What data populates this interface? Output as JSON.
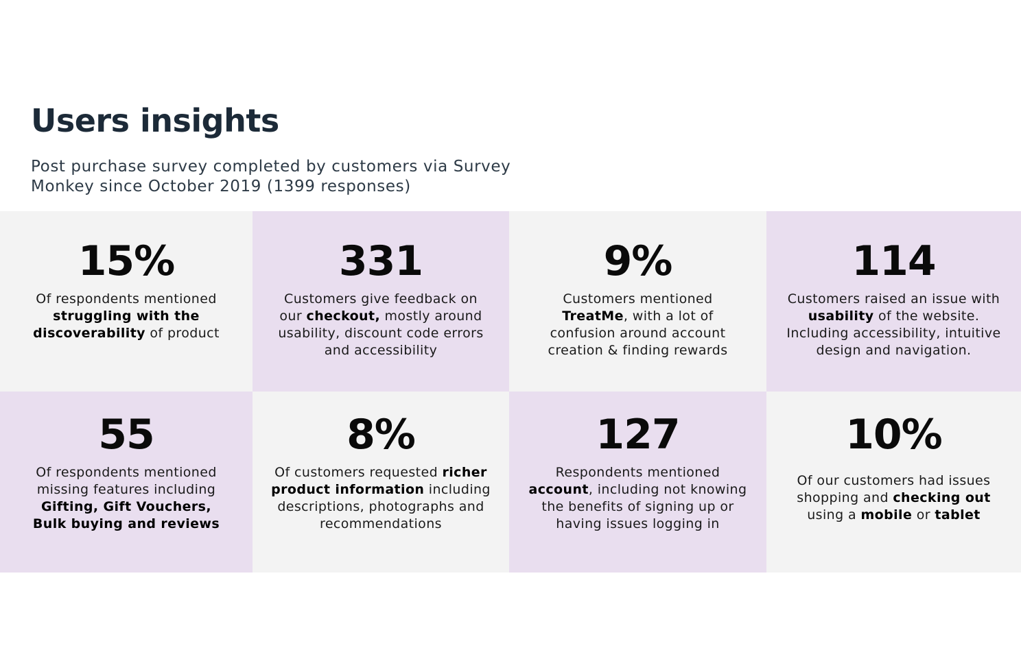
{
  "header": {
    "title": "Users insights",
    "subtitle": "Post purchase survey completed by customers via Survey Monkey since October 2019 (1399 responses)"
  },
  "colors": {
    "gray_tile": "#f3f3f3",
    "purple_tile": "#e9deef",
    "title_text": "#1c2a38"
  },
  "stats": [
    {
      "number": "15%",
      "parts": [
        {
          "t": "Of respondents mentioned ",
          "b": false
        },
        {
          "t": "struggling with the discoverability",
          "b": true
        },
        {
          "t": " of product",
          "b": false
        }
      ]
    },
    {
      "number": "331",
      "parts": [
        {
          "t": "Customers give feedback on our ",
          "b": false
        },
        {
          "t": "checkout,",
          "b": true
        },
        {
          "t": " mostly around usability, discount code errors and accessibility",
          "b": false
        }
      ]
    },
    {
      "number": "9%",
      "parts": [
        {
          "t": "Customers mentioned ",
          "b": false
        },
        {
          "t": "TreatMe",
          "b": true
        },
        {
          "t": ", with a lot of confusion around account creation & finding rewards",
          "b": false
        }
      ]
    },
    {
      "number": "114",
      "parts": [
        {
          "t": "Customers raised an issue with ",
          "b": false
        },
        {
          "t": "usability",
          "b": true
        },
        {
          "t": " of the website. Including accessibility, intuitive design and navigation.",
          "b": false
        }
      ]
    },
    {
      "number": "55",
      "parts": [
        {
          "t": "Of respondents mentioned missing features including ",
          "b": false
        },
        {
          "t": "Gifting, Gift Vouchers, Bulk buying and reviews",
          "b": true
        }
      ]
    },
    {
      "number": "8%",
      "parts": [
        {
          "t": "Of customers requested ",
          "b": false
        },
        {
          "t": "richer product information",
          "b": true
        },
        {
          "t": " including descriptions, photographs and recommendations",
          "b": false
        }
      ]
    },
    {
      "number": "127",
      "parts": [
        {
          "t": "Respondents mentioned ",
          "b": false
        },
        {
          "t": "account",
          "b": true
        },
        {
          "t": ", including not knowing the benefits of signing up or having issues logging in",
          "b": false
        }
      ]
    },
    {
      "number": "10%",
      "parts": [
        {
          "t": "Of our customers had issues shopping and ",
          "b": false
        },
        {
          "t": "checking out",
          "b": true
        },
        {
          "t": " using a ",
          "b": false
        },
        {
          "t": "mobile",
          "b": true
        },
        {
          "t": " or ",
          "b": false
        },
        {
          "t": "tablet",
          "b": true
        }
      ]
    }
  ]
}
